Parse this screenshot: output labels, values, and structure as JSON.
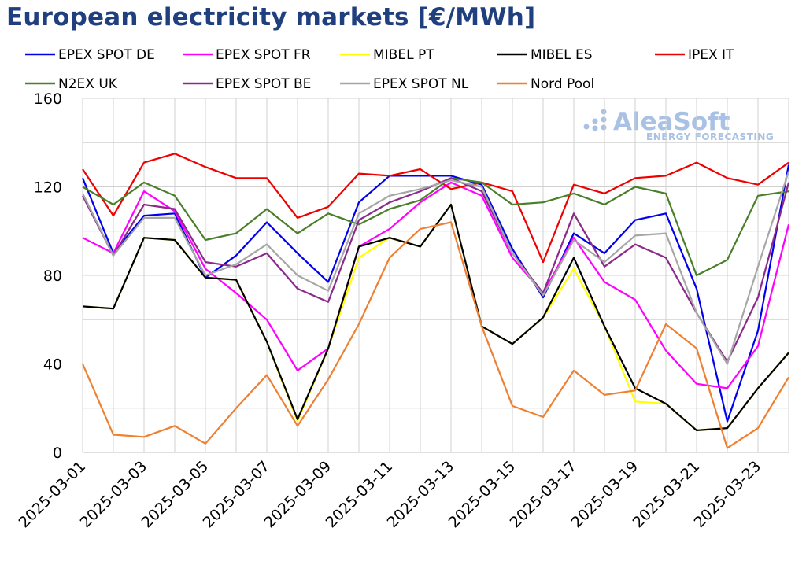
{
  "title": "European electricity markets [€/MWh]",
  "logo": {
    "name": "AleaSoft",
    "tagline": "ENERGY FORECASTING",
    "color": "#a8c1e4"
  },
  "chart_data": {
    "type": "line",
    "title": "European electricity markets [€/MWh]",
    "xlabel": "",
    "ylabel": "",
    "ylim": [
      0,
      160
    ],
    "yticks": [
      0,
      40,
      80,
      120,
      160
    ],
    "grid": true,
    "legend": "top",
    "x": [
      "2025-03-01",
      "2025-03-02",
      "2025-03-03",
      "2025-03-04",
      "2025-03-05",
      "2025-03-06",
      "2025-03-07",
      "2025-03-08",
      "2025-03-09",
      "2025-03-10",
      "2025-03-11",
      "2025-03-12",
      "2025-03-13",
      "2025-03-14",
      "2025-03-15",
      "2025-03-16",
      "2025-03-17",
      "2025-03-18",
      "2025-03-19",
      "2025-03-20",
      "2025-03-21",
      "2025-03-22",
      "2025-03-23",
      "2025-03-24"
    ],
    "xticklabels": [
      "2025-03-01",
      "2025-03-03",
      "2025-03-05",
      "2025-03-07",
      "2025-03-09",
      "2025-03-11",
      "2025-03-13",
      "2025-03-15",
      "2025-03-17",
      "2025-03-19",
      "2025-03-21",
      "2025-03-23"
    ],
    "series": [
      {
        "name": "EPEX SPOT DE",
        "color": "#0000ee",
        "values": [
          124,
          90,
          107,
          108,
          79,
          89,
          104,
          90,
          77,
          113,
          125,
          125,
          125,
          121,
          92,
          70,
          99,
          90,
          105,
          108,
          74,
          14,
          55,
          130
        ]
      },
      {
        "name": "EPEX SPOT FR",
        "color": "#ff00ff",
        "values": [
          97,
          90,
          118,
          109,
          83,
          72,
          60,
          37,
          47,
          93,
          101,
          113,
          122,
          116,
          88,
          72,
          97,
          77,
          69,
          46,
          31,
          29,
          48,
          103
        ]
      },
      {
        "name": "MIBEL PT",
        "color": "#ffff00",
        "values": [
          66,
          65,
          97,
          96,
          79,
          78,
          50,
          14,
          47,
          88,
          97,
          93,
          112,
          57,
          49,
          61,
          83,
          57,
          23,
          22,
          10,
          11,
          29,
          45
        ]
      },
      {
        "name": "MIBEL ES",
        "color": "#000000",
        "values": [
          66,
          65,
          97,
          96,
          79,
          78,
          50,
          15,
          47,
          93,
          97,
          93,
          112,
          57,
          49,
          61,
          88,
          57,
          29,
          22,
          10,
          11,
          29,
          45
        ]
      },
      {
        "name": "IPEX IT",
        "color": "#ee0000",
        "values": [
          128,
          107,
          131,
          135,
          129,
          124,
          124,
          106,
          111,
          126,
          125,
          128,
          119,
          122,
          118,
          86,
          121,
          117,
          124,
          125,
          131,
          124,
          121,
          131
        ]
      },
      {
        "name": "N2EX UK",
        "color": "#4a7f2a",
        "values": [
          120,
          112,
          122,
          116,
          96,
          99,
          110,
          99,
          108,
          103,
          110,
          114,
          124,
          122,
          112,
          113,
          117,
          112,
          120,
          117,
          80,
          87,
          116,
          118
        ]
      },
      {
        "name": "EPEX SPOT BE",
        "color": "#8b2a8b",
        "values": [
          116,
          89,
          112,
          110,
          86,
          84,
          90,
          74,
          68,
          105,
          113,
          118,
          124,
          118,
          90,
          72,
          108,
          84,
          94,
          88,
          63,
          41,
          70,
          122
        ]
      },
      {
        "name": "EPEX SPOT NL",
        "color": "#a6a6a6",
        "values": [
          117,
          89,
          106,
          106,
          80,
          85,
          94,
          80,
          73,
          108,
          116,
          119,
          123,
          120,
          90,
          71,
          96,
          86,
          98,
          99,
          63,
          40,
          84,
          127
        ]
      },
      {
        "name": "Nord Pool",
        "color": "#ee8033",
        "values": [
          40,
          8,
          7,
          12,
          4,
          20,
          35,
          12,
          33,
          58,
          88,
          101,
          104,
          57,
          21,
          16,
          37,
          26,
          28,
          58,
          47,
          2,
          11,
          34
        ]
      }
    ]
  }
}
